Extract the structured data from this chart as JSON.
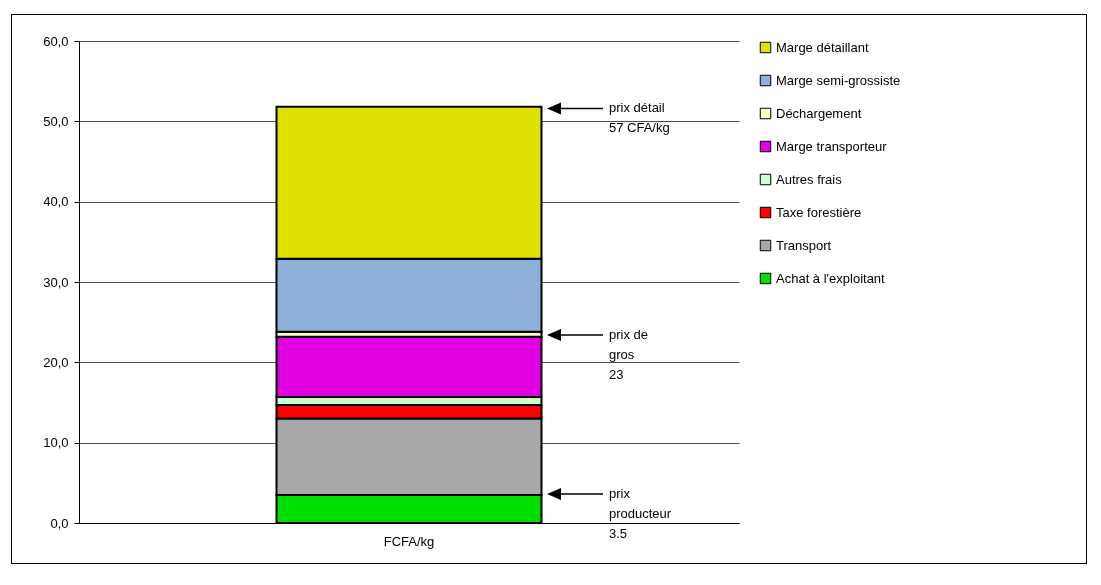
{
  "chart_data": {
    "type": "bar",
    "stacked": true,
    "categories": [
      "FCFA/kg"
    ],
    "series": [
      {
        "name": "Achat à l'exploitant",
        "color": "#00e000",
        "values": [
          3.5
        ]
      },
      {
        "name": "Transport",
        "color": "#a8a8a8",
        "values": [
          9.5
        ]
      },
      {
        "name": "Taxe forestière",
        "color": "#ff0000",
        "values": [
          1.7
        ]
      },
      {
        "name": "Autres frais",
        "color": "#ccffcc",
        "values": [
          1.0
        ]
      },
      {
        "name": "Marge transporteur",
        "color": "#e000e0",
        "values": [
          7.5
        ]
      },
      {
        "name": "Déchargement",
        "color": "#ffffcc",
        "values": [
          0.6
        ]
      },
      {
        "name": "Marge semi-grossiste",
        "color": "#8fb0d8",
        "values": [
          9.1
        ]
      },
      {
        "name": "Marge détaillant",
        "color": "#e0e000",
        "values": [
          18.9
        ]
      }
    ],
    "ylim": [
      0,
      60
    ],
    "yticks": [
      {
        "value": 0,
        "label": "0,0"
      },
      {
        "value": 10,
        "label": "10,0"
      },
      {
        "value": 20,
        "label": "20,0"
      },
      {
        "value": 30,
        "label": "30,0"
      },
      {
        "value": 40,
        "label": "40,0"
      },
      {
        "value": 50,
        "label": "50,0"
      },
      {
        "value": 60,
        "label": "60,0"
      }
    ],
    "grid": "y",
    "legend": "right",
    "annotations": [
      "prix détail\n57 CFA/kg",
      "prix de\ngros\n23",
      "prix\nproducteur\n3.5"
    ]
  }
}
